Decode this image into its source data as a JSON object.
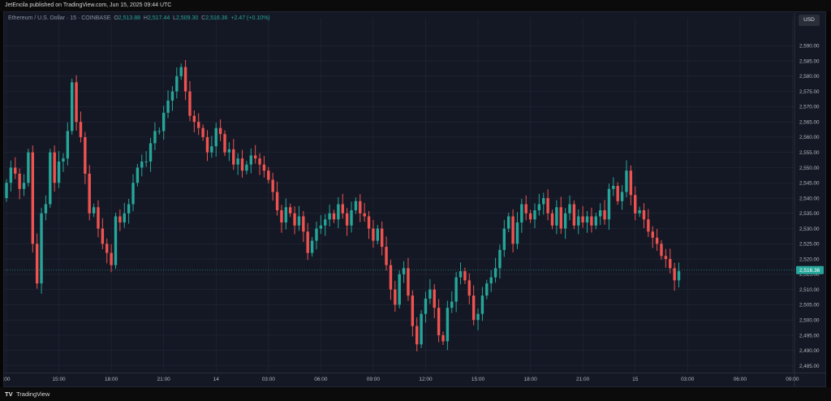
{
  "header": {
    "published": "JetEncila published on TradingView.com, Jun 15, 2025 09:44 UTC"
  },
  "legend": {
    "symbol": "Ethereum / U.S. Dollar · 15 · COINBASE",
    "o_label": "O",
    "o_value": "2,513.88",
    "h_label": "H",
    "h_value": "2,517.44",
    "l_label": "L",
    "l_value": "2,509.30",
    "c_label": "C",
    "c_value": "2,516.36",
    "change": "+2.47 (+0.10%)"
  },
  "currency_label": "USD",
  "last_price_label": "2,516.36",
  "footer": {
    "brand_logo": "TV",
    "brand_text": "TradingView"
  },
  "colors": {
    "up": "#26a69a",
    "down": "#ef5350",
    "background": "#141824",
    "grid": "#232838",
    "axis_text": "#b2b5be"
  },
  "chart_data": {
    "type": "candlestick",
    "y_ticks": [
      "2,590.00",
      "2,585.00",
      "2,580.00",
      "2,575.00",
      "2,570.00",
      "2,565.00",
      "2,560.00",
      "2,555.00",
      "2,550.00",
      "2,545.00",
      "2,540.00",
      "2,535.00",
      "2,530.00",
      "2,525.00",
      "2,520.00",
      "2,515.00",
      "2,510.00",
      "2,505.00",
      "2,500.00",
      "2,495.00",
      "2,490.00",
      "2,485.00"
    ],
    "ylim": [
      2482,
      2594
    ],
    "x_ticks": [
      {
        "label": ":00",
        "index": 0
      },
      {
        "label": "15:00",
        "index": 12
      },
      {
        "label": "18:00",
        "index": 24
      },
      {
        "label": "21:00",
        "index": 36
      },
      {
        "label": "14",
        "index": 48
      },
      {
        "label": "03:00",
        "index": 60
      },
      {
        "label": "06:00",
        "index": 72
      },
      {
        "label": "09:00",
        "index": 84
      },
      {
        "label": "12:00",
        "index": 96
      },
      {
        "label": "15:00",
        "index": 108
      },
      {
        "label": "18:00",
        "index": 120
      },
      {
        "label": "21:00",
        "index": 132
      },
      {
        "label": "15",
        "index": 144
      },
      {
        "label": "03:00",
        "index": 156
      },
      {
        "label": "06:00",
        "index": 168
      },
      {
        "label": "09:00",
        "index": 180
      }
    ],
    "grid": true,
    "last_price": 2516.36,
    "closes": [
      2545,
      2550,
      2548,
      2543,
      2545,
      2555,
      2525,
      2512,
      2535,
      2538,
      2555,
      2545,
      2552,
      2553,
      2562,
      2578,
      2565,
      2560,
      2548,
      2535,
      2537,
      2530,
      2525,
      2522,
      2518,
      2534,
      2532,
      2535,
      2538,
      2545,
      2550,
      2552,
      2552,
      2558,
      2562,
      2562,
      2568,
      2572,
      2575,
      2580,
      2583,
      2575,
      2567,
      2565,
      2563,
      2560,
      2555,
      2557,
      2563,
      2561,
      2555,
      2556,
      2551,
      2553,
      2549,
      2551,
      2554,
      2553,
      2551,
      2549,
      2546,
      2542,
      2536,
      2532,
      2537,
      2535,
      2531,
      2534,
      2529,
      2522,
      2526,
      2530,
      2531,
      2533,
      2535,
      2533,
      2538,
      2535,
      2531,
      2536,
      2539,
      2535,
      2534,
      2530,
      2526,
      2530,
      2524,
      2518,
      2510,
      2505,
      2515,
      2517,
      2508,
      2498,
      2492,
      2502,
      2507,
      2510,
      2504,
      2495,
      2493,
      2504,
      2506,
      2514,
      2516,
      2513,
      2508,
      2500,
      2502,
      2508,
      2512,
      2514,
      2517,
      2523,
      2530,
      2534,
      2525,
      2532,
      2538,
      2535,
      2533,
      2536,
      2538,
      2540,
      2535,
      2531,
      2537,
      2530,
      2535,
      2538,
      2531,
      2534,
      2532,
      2534,
      2531,
      2534,
      2536,
      2533,
      2543,
      2544,
      2539,
      2542,
      2549,
      2541,
      2535,
      2536,
      2533,
      2529,
      2527,
      2525,
      2521,
      2520,
      2517,
      2513,
      2516
    ]
  }
}
